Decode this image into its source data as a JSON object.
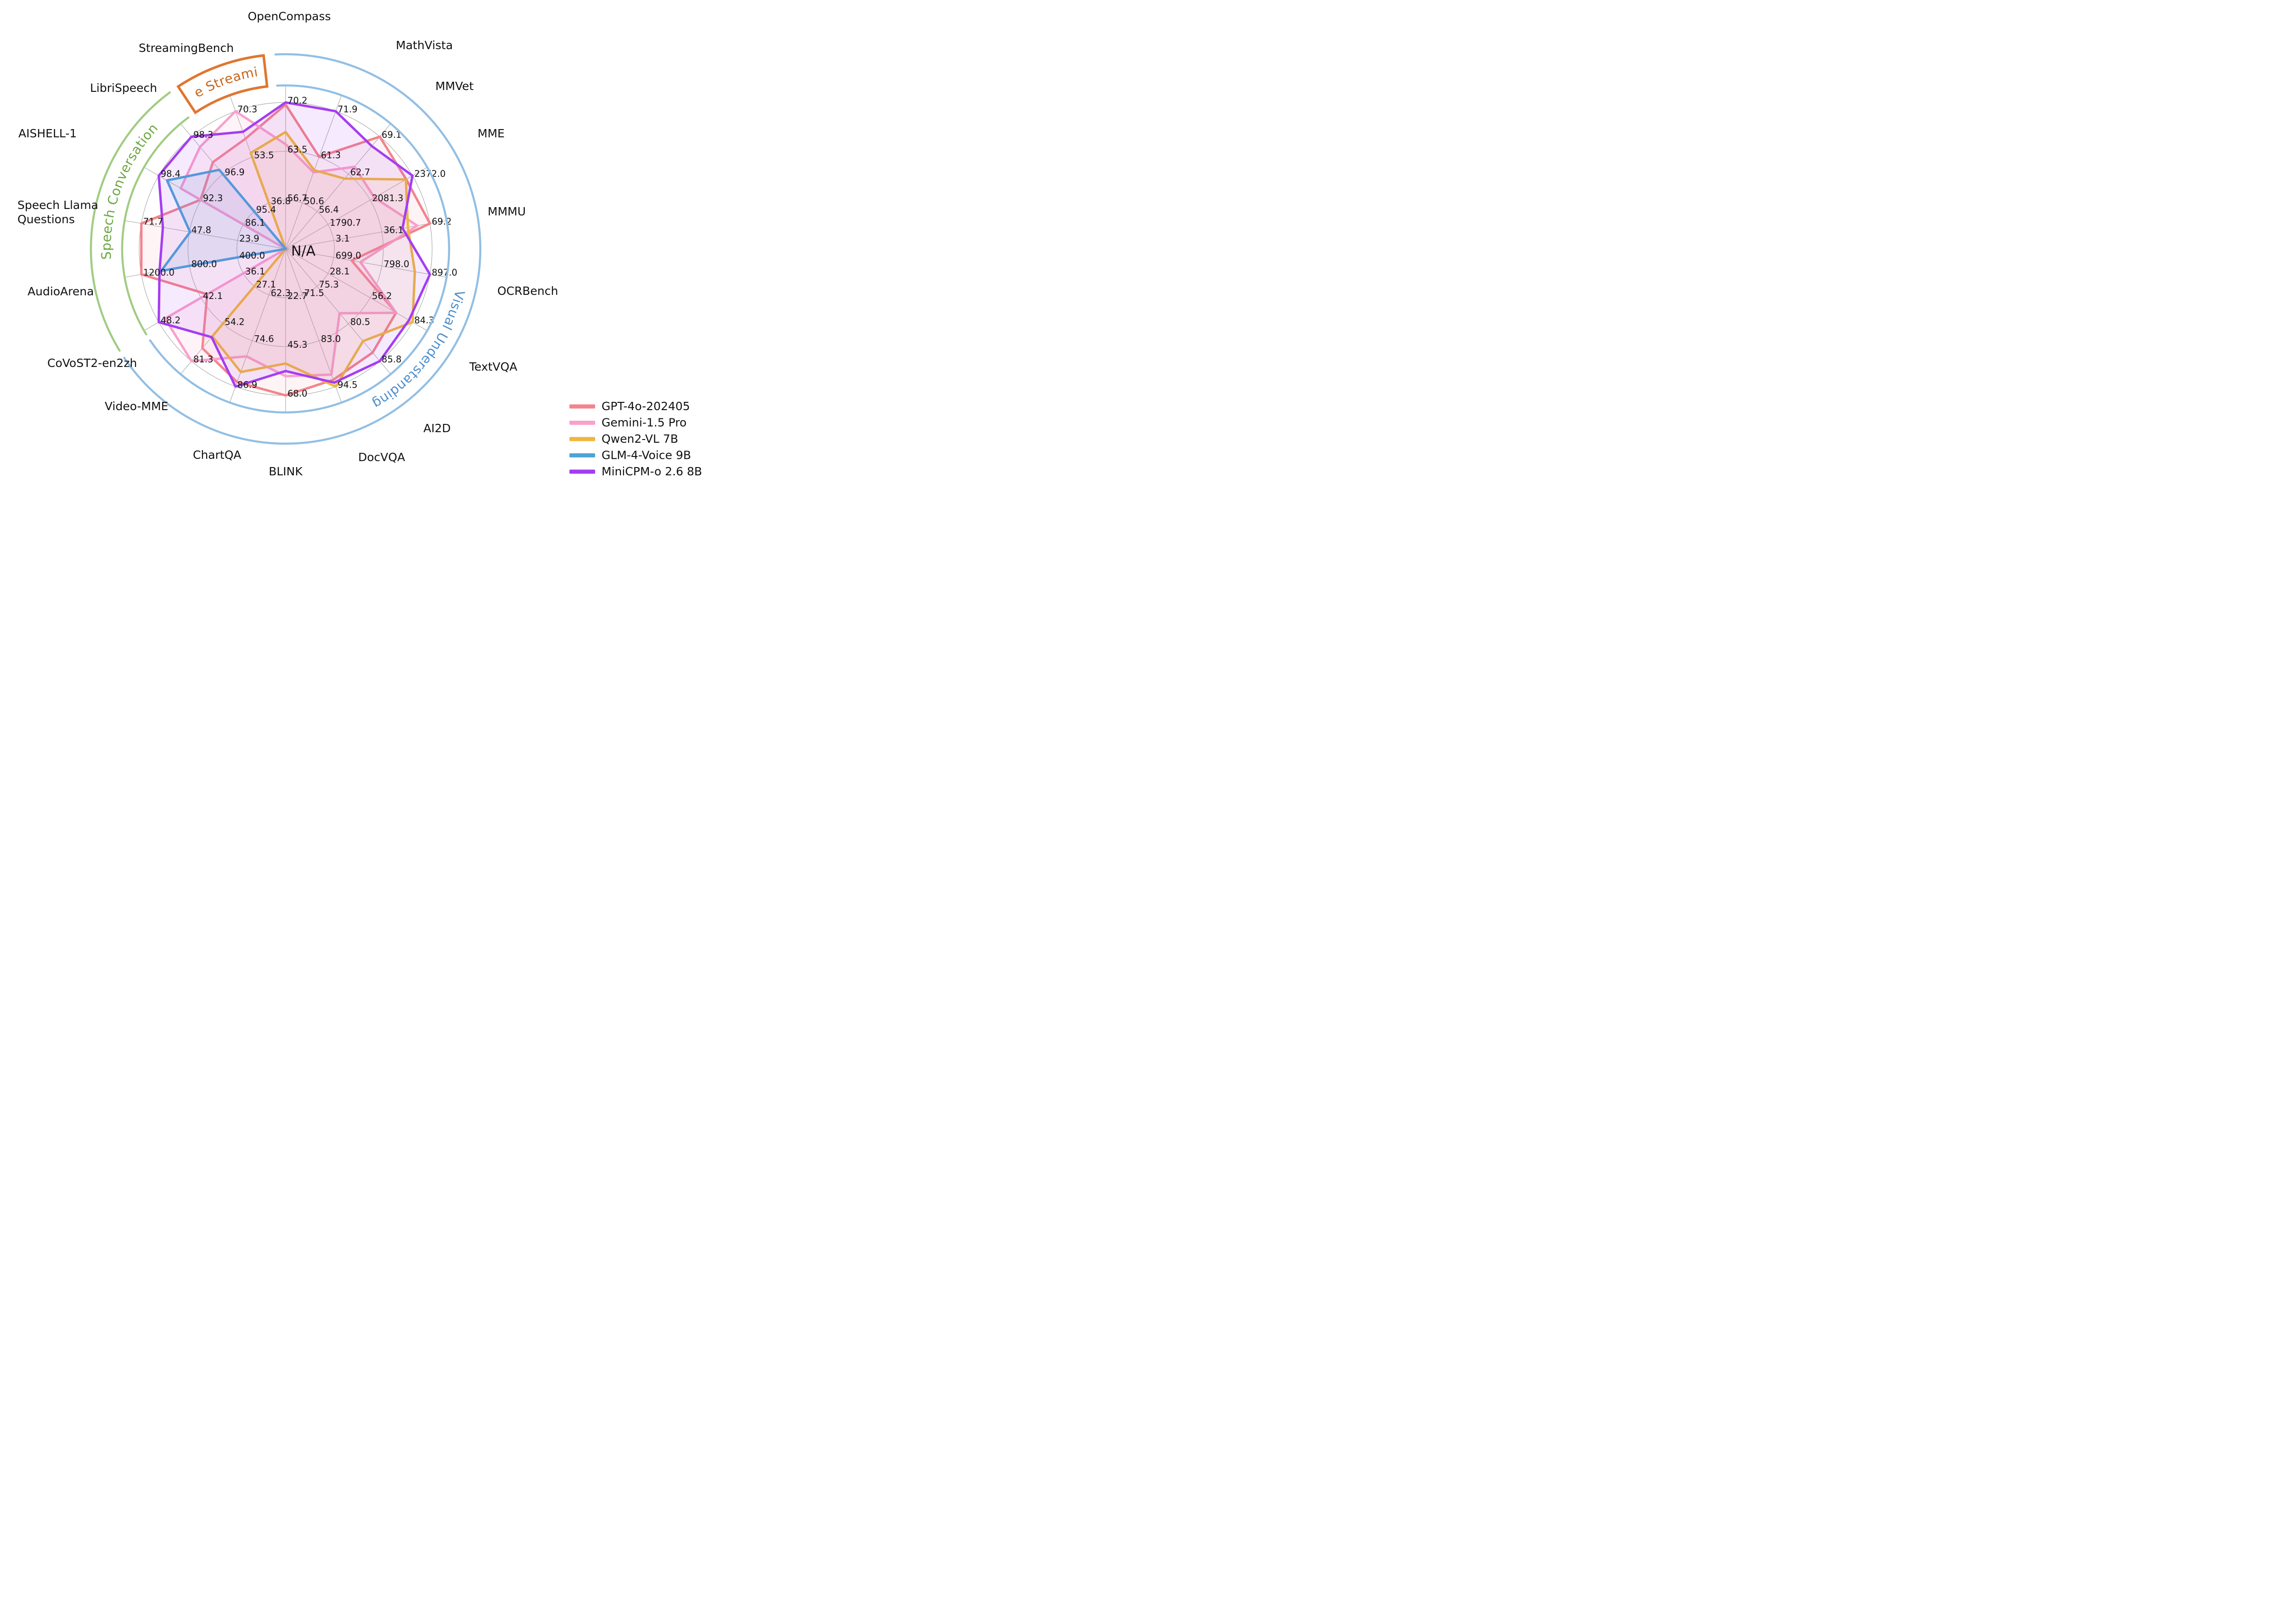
{
  "chart_data": {
    "type": "radar",
    "title": "",
    "center_label": "N/A",
    "rings": 3,
    "grid": true,
    "legend_position": "bottom-right",
    "axes": [
      {
        "name": "OpenCompass",
        "category": "Visual Understanding",
        "ticks": [
          "56.7",
          "63.5",
          "70.2"
        ],
        "min": 49.9
      },
      {
        "name": "MathVista",
        "category": "Visual Understanding",
        "ticks": [
          "50.6",
          "61.3",
          "71.9"
        ],
        "min": 39.9
      },
      {
        "name": "MMVet",
        "category": "Visual Understanding",
        "ticks": [
          "56.4",
          "62.7",
          "69.1"
        ],
        "min": 50.1
      },
      {
        "name": "MME",
        "category": "Visual Understanding",
        "ticks": [
          "1790.7",
          "2081.3",
          "2372.0"
        ],
        "min": 1500.1
      },
      {
        "name": "MMMU",
        "category": "Visual Understanding",
        "ticks": [
          "3.1",
          "36.1",
          "69.2"
        ],
        "min": -29.9
      },
      {
        "name": "OCRBench",
        "category": "Visual Understanding",
        "ticks": [
          "699.0",
          "798.0",
          "897.0"
        ],
        "min": 600.0
      },
      {
        "name": "TextVQA",
        "category": "Visual Understanding",
        "ticks": [
          "28.1",
          "56.2",
          "84.3"
        ],
        "min": 0.0
      },
      {
        "name": "AI2D",
        "category": "Visual Understanding",
        "ticks": [
          "75.3",
          "80.5",
          "85.8"
        ],
        "min": 70.1
      },
      {
        "name": "DocVQA",
        "category": "Visual Understanding",
        "ticks": [
          "71.5",
          "83.0",
          "94.5"
        ],
        "min": 60.0
      },
      {
        "name": "BLINK",
        "category": "Visual Understanding",
        "ticks": [
          "22.7",
          "45.3",
          "68.0"
        ],
        "min": 0.1
      },
      {
        "name": "ChartQA",
        "category": "Visual Understanding",
        "ticks": [
          "62.3",
          "74.6",
          "86.9"
        ],
        "min": 50.0
      },
      {
        "name": "Video-MME",
        "category": "Visual Understanding",
        "ticks": [
          "27.1",
          "54.2",
          "81.3"
        ],
        "min": 0.0
      },
      {
        "name": "CoVoST2-en2zh",
        "category": "Speech Conversation",
        "ticks": [
          "36.1",
          "42.1",
          "48.2"
        ],
        "min": 30.1
      },
      {
        "name": "AudioArena",
        "category": "Speech Conversation",
        "ticks": [
          "400.0",
          "800.0",
          "1200.0"
        ],
        "min": 0.0
      },
      {
        "name": "Speech Llama\nQuestions",
        "category": "Speech Conversation",
        "ticks": [
          "23.9",
          "47.8",
          "71.7"
        ],
        "min": 0.0
      },
      {
        "name": "AISHELL-1",
        "category": "Speech Conversation",
        "ticks": [
          "86.1",
          "92.3",
          "98.4"
        ],
        "min": 79.9
      },
      {
        "name": "LibriSpeech",
        "category": "Speech Conversation",
        "ticks": [
          "95.4",
          "96.9",
          "98.3"
        ],
        "min": 93.9
      },
      {
        "name": "StreamingBench",
        "category": "Live Streaming",
        "ticks": [
          "36.8",
          "53.5",
          "70.3"
        ],
        "min": 20.1
      }
    ],
    "series": [
      {
        "name": "GPT-4o-202405",
        "color": "#F4838B",
        "fill_opacity": 0.09,
        "values": [
          69.9,
          61.3,
          69.1,
          2328.7,
          69.2,
          736.0,
          73.4,
          84.6,
          92.8,
          68.0,
          85.7,
          71.9,
          41.3,
          1200.0,
          71.7,
          92.3,
          97.3,
          60.3
        ]
      },
      {
        "name": "Gemini-1.5 Pro",
        "color": "#FAA0CB",
        "fill_opacity": 0.13,
        "values": [
          64.4,
          57.7,
          64.0,
          2110.6,
          60.6,
          754.0,
          73.5,
          79.1,
          91.5,
          59.1,
          78.8,
          81.3,
          47.3,
          null,
          null,
          95.2,
          97.9,
          70.3
        ]
      },
      {
        "name": "Qwen2-VL 7B",
        "color": "#EFB63E",
        "fill_opacity": 0.09,
        "values": [
          66.1,
          58.2,
          62.0,
          2326.8,
          54.1,
          866.0,
          84.3,
          83.0,
          94.5,
          53.2,
          83.0,
          63.3,
          null,
          null,
          null,
          null,
          null,
          55.1
        ]
      },
      {
        "name": "GLM-4-Voice 9B",
        "color": "#4FA3D8",
        "fill_opacity": 0.12,
        "values": [
          null,
          null,
          null,
          null,
          null,
          null,
          null,
          null,
          null,
          null,
          null,
          null,
          null,
          1035.0,
          47.5,
          97.2,
          97.0,
          null
        ]
      },
      {
        "name": "MiniCPM-o 2.6 8B",
        "color": "#A43DF2",
        "fill_opacity": 0.1,
        "values": [
          70.2,
          71.9,
          67.5,
          2372.0,
          50.4,
          897.0,
          82.0,
          85.8,
          93.5,
          56.7,
          86.9,
          63.9,
          48.2,
          1049.0,
          61.0,
          98.4,
          98.3,
          62.8
        ]
      }
    ],
    "category_bands": [
      {
        "label": "Visual Understanding",
        "start_deg": 357.0,
        "end_deg": 596.0,
        "label_start_deg": 97,
        "label_end_deg": 157,
        "color": "#92BFE4",
        "text_color": "#4E8FCB",
        "banner": false
      },
      {
        "label": "Speech Conversation",
        "start_deg": 238.5,
        "end_deg": 323.5,
        "label_start_deg": 265,
        "label_end_deg": 315,
        "color": "#A1CC82",
        "text_color": "#6BA83F",
        "banner": false
      },
      {
        "label": "Live Streaming",
        "start_deg": 326.5,
        "end_deg": 353.5,
        "label_start_deg": 329,
        "label_end_deg": 351,
        "color": "#E0762F",
        "text_color": "#C9661A",
        "banner": true
      }
    ],
    "grid_color": "#ACACAC",
    "tick_color": "#111111",
    "axis_label_color": "#111111"
  }
}
